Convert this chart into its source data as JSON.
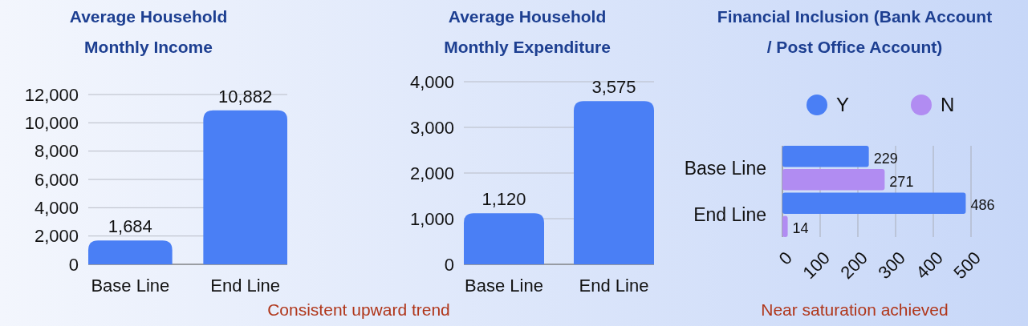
{
  "chart_data": [
    {
      "type": "bar",
      "title": "Average Household Monthly Income",
      "categories": [
        "Base Line",
        "End Line"
      ],
      "values": [
        1684,
        10882
      ],
      "color": "#4a7ff5",
      "ylim": [
        0,
        12000
      ],
      "yticks": [
        {
          "value": 0,
          "label": "0"
        },
        {
          "value": 2000,
          "label": "2,000"
        },
        {
          "value": 4000,
          "label": "4,000"
        },
        {
          "value": 6000,
          "label": "6,000"
        },
        {
          "value": 8000,
          "label": "8,000"
        },
        {
          "value": 10000,
          "label": "10,000"
        },
        {
          "value": 12000,
          "label": "12,000"
        }
      ],
      "grid": "y",
      "data_labels": true,
      "value_labels": [
        "1,684",
        "10,882"
      ],
      "annotations": [
        "Consistent upward trend"
      ]
    },
    {
      "type": "bar",
      "title": "Average Household Monthly Expenditure",
      "categories": [
        "Base Line",
        "End Line"
      ],
      "values": [
        1120,
        3575
      ],
      "color": "#4a7ff5",
      "ylim": [
        0,
        4000
      ],
      "yticks": [
        {
          "value": 0,
          "label": "0"
        },
        {
          "value": 1000,
          "label": "1,000"
        },
        {
          "value": 2000,
          "label": "2,000"
        },
        {
          "value": 3000,
          "label": "3,000"
        },
        {
          "value": 4000,
          "label": "4,000"
        }
      ],
      "grid": "y",
      "data_labels": true,
      "value_labels": [
        "1,120",
        "3,575"
      ]
    },
    {
      "type": "bar",
      "orientation": "horizontal",
      "title": "Financial Inclusion (Bank Account / Post Office Account)",
      "categories": [
        "Base Line",
        "End Line"
      ],
      "series": [
        {
          "name": "Y",
          "color": "#4a7ff5",
          "values": [
            229,
            486
          ]
        },
        {
          "name": "N",
          "color": "#b18cf2",
          "values": [
            271,
            14
          ]
        }
      ],
      "xlim": [
        0,
        500
      ],
      "xticks": [
        0,
        100,
        200,
        300,
        400,
        500
      ],
      "grid": "x",
      "legend": "top",
      "data_labels": true,
      "annotations": [
        "Near saturation achieved"
      ]
    }
  ]
}
